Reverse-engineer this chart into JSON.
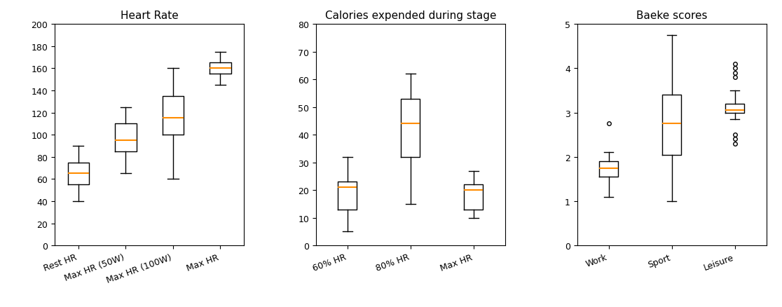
{
  "title1": "Heart Rate",
  "title2": "Calories expended during stage",
  "title3": "Baeke scores",
  "hr_labels": [
    "Rest HR",
    "Max HR (50W)",
    "Max HR (100W)",
    "Max HR"
  ],
  "cal_labels": [
    "60% HR",
    "80% HR",
    "Max HR"
  ],
  "baeke_labels": [
    "Work",
    "Sport",
    "Leisure"
  ],
  "hr_boxes": [
    {
      "whislo": 40,
      "q1": 55,
      "med": 65,
      "q3": 75,
      "whishi": 90
    },
    {
      "whislo": 65,
      "q1": 85,
      "med": 95,
      "q3": 110,
      "whishi": 125
    },
    {
      "whislo": 60,
      "q1": 100,
      "med": 115,
      "q3": 135,
      "whishi": 160
    },
    {
      "whislo": 145,
      "q1": 155,
      "med": 160,
      "q3": 165,
      "whishi": 175
    }
  ],
  "cal_boxes": [
    {
      "whislo": 5,
      "q1": 13,
      "med": 21,
      "q3": 23,
      "whishi": 32
    },
    {
      "whislo": 15,
      "q1": 32,
      "med": 44,
      "q3": 53,
      "whishi": 62
    },
    {
      "whislo": 10,
      "q1": 13,
      "med": 20,
      "q3": 22,
      "whishi": 27
    }
  ],
  "baeke_boxes": [
    {
      "whislo": 1.1,
      "q1": 1.55,
      "med": 1.75,
      "q3": 1.9,
      "whishi": 2.1,
      "fliers": [
        2.75
      ]
    },
    {
      "whislo": 1.0,
      "q1": 2.05,
      "med": 2.75,
      "q3": 3.4,
      "whishi": 4.75,
      "fliers": []
    },
    {
      "whislo": 2.85,
      "q1": 3.0,
      "med": 3.05,
      "q3": 3.2,
      "whishi": 3.5,
      "fliers": [
        2.3,
        2.4,
        2.5,
        3.8,
        3.9,
        4.0,
        4.1
      ]
    }
  ],
  "hr_ylim": [
    0,
    200
  ],
  "hr_yticks": [
    0,
    20,
    40,
    60,
    80,
    100,
    120,
    140,
    160,
    180,
    200
  ],
  "cal_ylim": [
    0,
    80
  ],
  "cal_yticks": [
    0,
    10,
    20,
    30,
    40,
    50,
    60,
    70,
    80
  ],
  "baeke_ylim": [
    0,
    5
  ],
  "baeke_yticks": [
    0,
    1,
    2,
    3,
    4,
    5
  ],
  "median_color": "#FF8C00",
  "box_color": "black",
  "whisker_color": "black"
}
